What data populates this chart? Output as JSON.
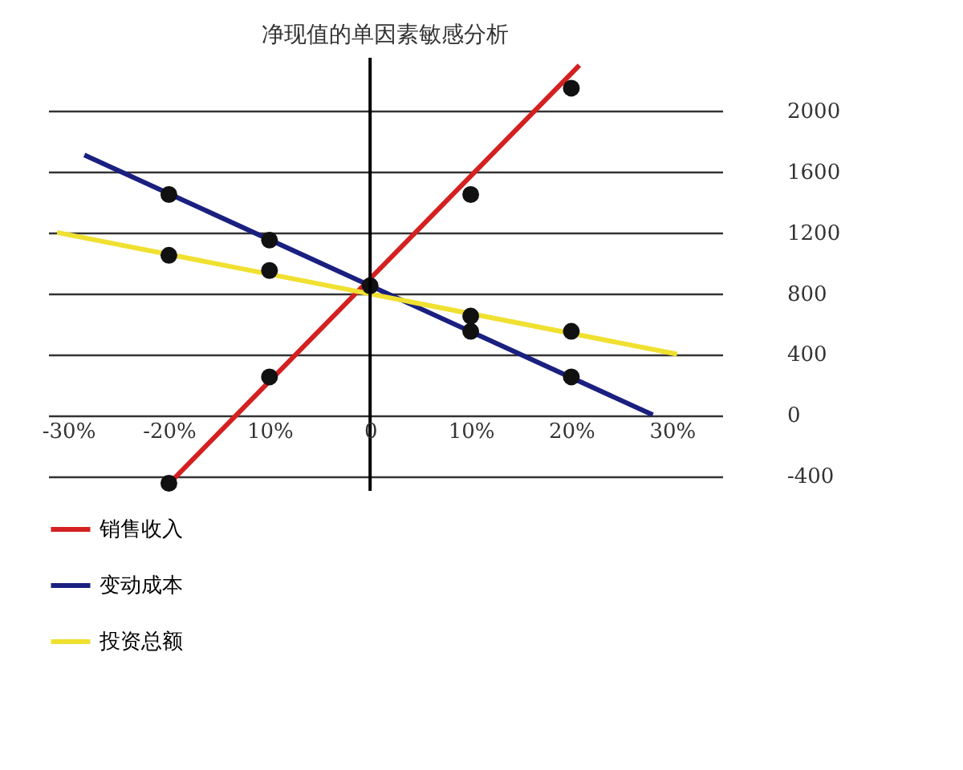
{
  "chart_data": {
    "type": "line",
    "title": "净现值的单因素敏感分析",
    "series": [
      {
        "name": "销售收入",
        "color": "#d42020",
        "x": [
          -19.5,
          20.8
        ],
        "values": [
          -420,
          2300
        ]
      },
      {
        "name": "变动成本",
        "color": "#1a1f80",
        "x": [
          -28.4,
          28.1
        ],
        "values": [
          1710,
          0
        ]
      },
      {
        "name": "投资总额",
        "color": "#f0e030",
        "x": [
          -31.1,
          30.5
        ],
        "values": [
          1200,
          400
        ]
      },
      {
        "type": "scatter",
        "color": "#111111",
        "x": [
          -20,
          -10,
          10,
          20,
          -20,
          -10,
          10,
          20,
          -20,
          -10,
          10,
          20,
          0
        ],
        "values": [
          -450,
          250,
          1450,
          2150,
          1450,
          1150,
          550,
          250,
          1050,
          950,
          650,
          550,
          850
        ]
      }
    ],
    "xlim": [
      -32,
      35
    ],
    "ylim": [
      -500,
      2350
    ],
    "xticks": [
      {
        "value": -30,
        "label": "-30%"
      },
      {
        "value": -20,
        "label": "-20%"
      },
      {
        "value": -10,
        "label": "10%"
      },
      0,
      {
        "value": 10,
        "label": "10%"
      },
      {
        "value": 20,
        "label": "20%"
      },
      {
        "value": 30,
        "label": "30%"
      }
    ],
    "yticks": [
      -400,
      0,
      400,
      800,
      1200,
      1600,
      2000
    ],
    "ref_lines": [
      {
        "axis": "x",
        "value": 0,
        "color": "#000000"
      }
    ],
    "grid": "y",
    "legend": "bottom left",
    "line_style": "solid"
  }
}
